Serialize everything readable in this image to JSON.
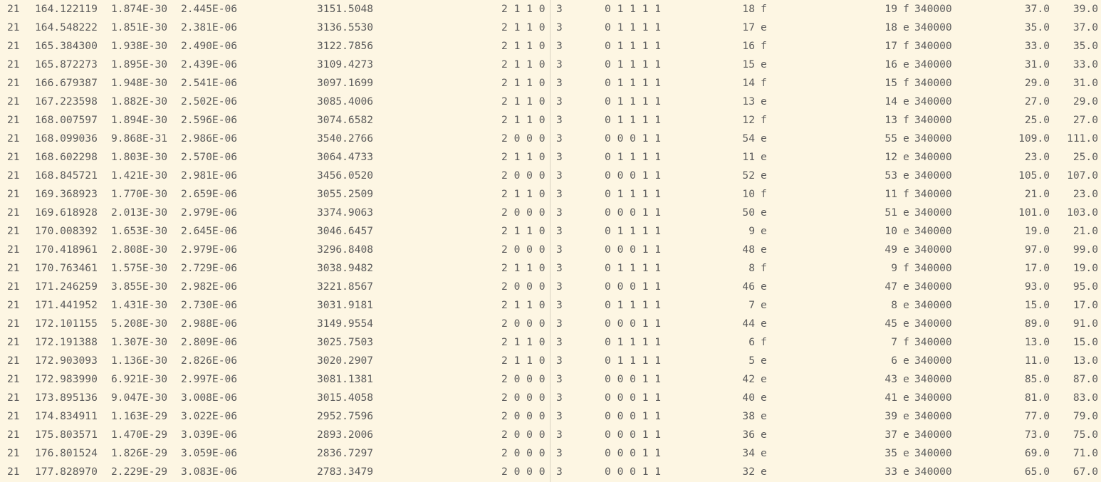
{
  "rows": [
    [
      "21",
      "164.122119",
      "1.874E-30",
      "2.445E-06",
      "3151.5048",
      "2 1 1 0",
      "3",
      "0 1 1 1 1",
      "18",
      "f",
      "19",
      "f",
      "340000",
      "37.0",
      "39.0"
    ],
    [
      "21",
      "164.548222",
      "1.851E-30",
      "2.381E-06",
      "3136.5530",
      "2 1 1 0",
      "3",
      "0 1 1 1 1",
      "17",
      "e",
      "18",
      "e",
      "340000",
      "35.0",
      "37.0"
    ],
    [
      "21",
      "165.384300",
      "1.938E-30",
      "2.490E-06",
      "3122.7856",
      "2 1 1 0",
      "3",
      "0 1 1 1 1",
      "16",
      "f",
      "17",
      "f",
      "340000",
      "33.0",
      "35.0"
    ],
    [
      "21",
      "165.872273",
      "1.895E-30",
      "2.439E-06",
      "3109.4273",
      "2 1 1 0",
      "3",
      "0 1 1 1 1",
      "15",
      "e",
      "16",
      "e",
      "340000",
      "31.0",
      "33.0"
    ],
    [
      "21",
      "166.679387",
      "1.948E-30",
      "2.541E-06",
      "3097.1699",
      "2 1 1 0",
      "3",
      "0 1 1 1 1",
      "14",
      "f",
      "15",
      "f",
      "340000",
      "29.0",
      "31.0"
    ],
    [
      "21",
      "167.223598",
      "1.882E-30",
      "2.502E-06",
      "3085.4006",
      "2 1 1 0",
      "3",
      "0 1 1 1 1",
      "13",
      "e",
      "14",
      "e",
      "340000",
      "27.0",
      "29.0"
    ],
    [
      "21",
      "168.007597",
      "1.894E-30",
      "2.596E-06",
      "3074.6582",
      "2 1 1 0",
      "3",
      "0 1 1 1 1",
      "12",
      "f",
      "13",
      "f",
      "340000",
      "25.0",
      "27.0"
    ],
    [
      "21",
      "168.099036",
      "9.868E-31",
      "2.986E-06",
      "3540.2766",
      "2 0 0 0",
      "3",
      "0 0 0 1 1",
      "54",
      "e",
      "55",
      "e",
      "340000",
      "109.0",
      "111.0"
    ],
    [
      "21",
      "168.602298",
      "1.803E-30",
      "2.570E-06",
      "3064.4733",
      "2 1 1 0",
      "3",
      "0 1 1 1 1",
      "11",
      "e",
      "12",
      "e",
      "340000",
      "23.0",
      "25.0"
    ],
    [
      "21",
      "168.845721",
      "1.421E-30",
      "2.981E-06",
      "3456.0520",
      "2 0 0 0",
      "3",
      "0 0 0 1 1",
      "52",
      "e",
      "53",
      "e",
      "340000",
      "105.0",
      "107.0"
    ],
    [
      "21",
      "169.368923",
      "1.770E-30",
      "2.659E-06",
      "3055.2509",
      "2 1 1 0",
      "3",
      "0 1 1 1 1",
      "10",
      "f",
      "11",
      "f",
      "340000",
      "21.0",
      "23.0"
    ],
    [
      "21",
      "169.618928",
      "2.013E-30",
      "2.979E-06",
      "3374.9063",
      "2 0 0 0",
      "3",
      "0 0 0 1 1",
      "50",
      "e",
      "51",
      "e",
      "340000",
      "101.0",
      "103.0"
    ],
    [
      "21",
      "170.008392",
      "1.653E-30",
      "2.645E-06",
      "3046.6457",
      "2 1 1 0",
      "3",
      "0 1 1 1 1",
      "9",
      "e",
      "10",
      "e",
      "340000",
      "19.0",
      "21.0"
    ],
    [
      "21",
      "170.418961",
      "2.808E-30",
      "2.979E-06",
      "3296.8408",
      "2 0 0 0",
      "3",
      "0 0 0 1 1",
      "48",
      "e",
      "49",
      "e",
      "340000",
      "97.0",
      "99.0"
    ],
    [
      "21",
      "170.763461",
      "1.575E-30",
      "2.729E-06",
      "3038.9482",
      "2 1 1 0",
      "3",
      "0 1 1 1 1",
      "8",
      "f",
      "9",
      "f",
      "340000",
      "17.0",
      "19.0"
    ],
    [
      "21",
      "171.246259",
      "3.855E-30",
      "2.982E-06",
      "3221.8567",
      "2 0 0 0",
      "3",
      "0 0 0 1 1",
      "46",
      "e",
      "47",
      "e",
      "340000",
      "93.0",
      "95.0"
    ],
    [
      "21",
      "171.441952",
      "1.431E-30",
      "2.730E-06",
      "3031.9181",
      "2 1 1 0",
      "3",
      "0 1 1 1 1",
      "7",
      "e",
      "8",
      "e",
      "340000",
      "15.0",
      "17.0"
    ],
    [
      "21",
      "172.101155",
      "5.208E-30",
      "2.988E-06",
      "3149.9554",
      "2 0 0 0",
      "3",
      "0 0 0 1 1",
      "44",
      "e",
      "45",
      "e",
      "340000",
      "89.0",
      "91.0"
    ],
    [
      "21",
      "172.191388",
      "1.307E-30",
      "2.809E-06",
      "3025.7503",
      "2 1 1 0",
      "3",
      "0 1 1 1 1",
      "6",
      "f",
      "7",
      "f",
      "340000",
      "13.0",
      "15.0"
    ],
    [
      "21",
      "172.903093",
      "1.136E-30",
      "2.826E-06",
      "3020.2907",
      "2 1 1 0",
      "3",
      "0 1 1 1 1",
      "5",
      "e",
      "6",
      "e",
      "340000",
      "11.0",
      "13.0"
    ],
    [
      "21",
      "172.983990",
      "6.921E-30",
      "2.997E-06",
      "3081.1381",
      "2 0 0 0",
      "3",
      "0 0 0 1 1",
      "42",
      "e",
      "43",
      "e",
      "340000",
      "85.0",
      "87.0"
    ],
    [
      "21",
      "173.895136",
      "9.047E-30",
      "3.008E-06",
      "3015.4058",
      "2 0 0 0",
      "3",
      "0 0 0 1 1",
      "40",
      "e",
      "41",
      "e",
      "340000",
      "81.0",
      "83.0"
    ],
    [
      "21",
      "174.834911",
      "1.163E-29",
      "3.022E-06",
      "2952.7596",
      "2 0 0 0",
      "3",
      "0 0 0 1 1",
      "38",
      "e",
      "39",
      "e",
      "340000",
      "77.0",
      "79.0"
    ],
    [
      "21",
      "175.803571",
      "1.470E-29",
      "3.039E-06",
      "2893.2006",
      "2 0 0 0",
      "3",
      "0 0 0 1 1",
      "36",
      "e",
      "37",
      "e",
      "340000",
      "73.0",
      "75.0"
    ],
    [
      "21",
      "176.801524",
      "1.826E-29",
      "3.059E-06",
      "2836.7297",
      "2 0 0 0",
      "3",
      "0 0 0 1 1",
      "34",
      "e",
      "35",
      "e",
      "340000",
      "69.0",
      "71.0"
    ],
    [
      "21",
      "177.828970",
      "2.229E-29",
      "3.083E-06",
      "2783.3479",
      "2 0 0 0",
      "3",
      "0 0 0 1 1",
      "32",
      "e",
      "33",
      "e",
      "340000",
      "65.0",
      "67.0"
    ]
  ]
}
